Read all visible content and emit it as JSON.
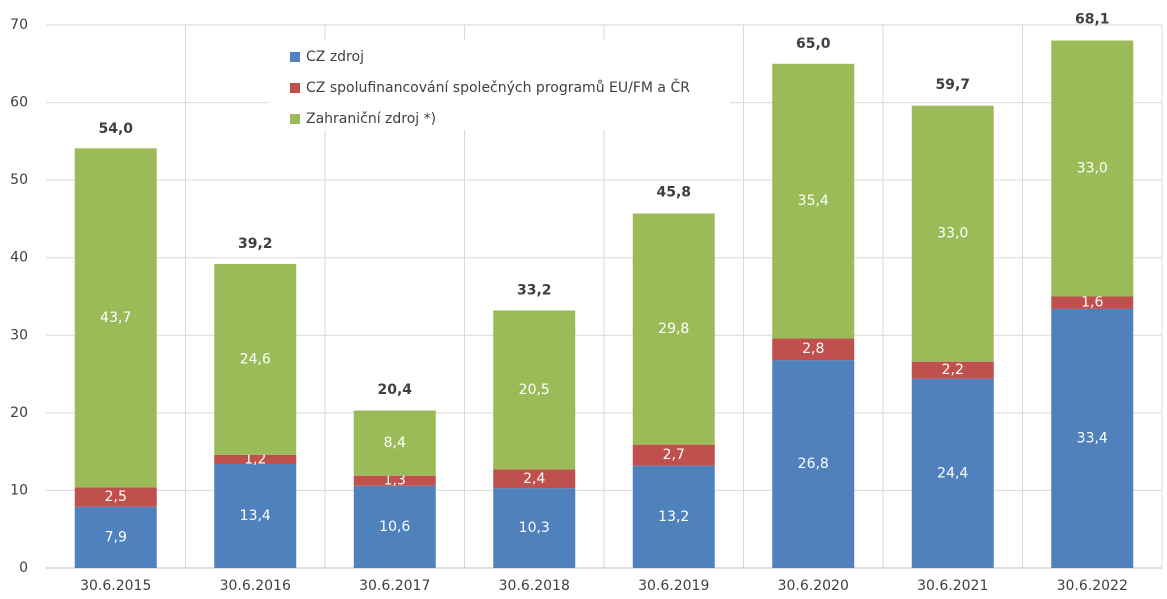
{
  "chart_data": {
    "type": "stacked_bar",
    "categories": [
      "30.6.2015",
      "30.6.2016",
      "30.6.2017",
      "30.6.2018",
      "30.6.2019",
      "30.6.2020",
      "30.6.2021",
      "30.6.2022"
    ],
    "series": [
      {
        "name": "CZ zdroj",
        "color": "#4f81bd",
        "values": [
          7.9,
          13.4,
          10.6,
          10.3,
          13.2,
          26.8,
          24.4,
          33.4
        ],
        "value_labels": [
          "7,9",
          "13,4",
          "10,6",
          "10,3",
          "13,2",
          "26,8",
          "24,4",
          "33,4"
        ]
      },
      {
        "name": "CZ spolufinancování společných programů EU/FM a ČR",
        "color": "#c0504d",
        "values": [
          2.5,
          1.2,
          1.3,
          2.4,
          2.7,
          2.8,
          2.2,
          1.6
        ],
        "value_labels": [
          "2,5",
          "1,2",
          "1,3",
          "2,4",
          "2,7",
          "2,8",
          "2,2",
          "1,6"
        ]
      },
      {
        "name": "Zahraniční zdroj *)",
        "color": "#9bbb59",
        "values": [
          43.7,
          24.6,
          8.4,
          20.5,
          29.8,
          35.4,
          33.0,
          33.0
        ],
        "value_labels": [
          "43,7",
          "24,6",
          "8,4",
          "20,5",
          "29,8",
          "35,4",
          "33,0",
          "33,0"
        ]
      }
    ],
    "totals": {
      "values": [
        54.0,
        39.2,
        20.4,
        33.2,
        45.8,
        65.0,
        59.7,
        68.1
      ],
      "value_labels": [
        "54,0",
        "39,2",
        "20,4",
        "33,2",
        "45,8",
        "65,0",
        "59,7",
        "68,1"
      ]
    },
    "ylim": [
      0,
      70
    ],
    "yticks": [
      0,
      10,
      20,
      30,
      40,
      50,
      60,
      70
    ],
    "grid": true
  }
}
